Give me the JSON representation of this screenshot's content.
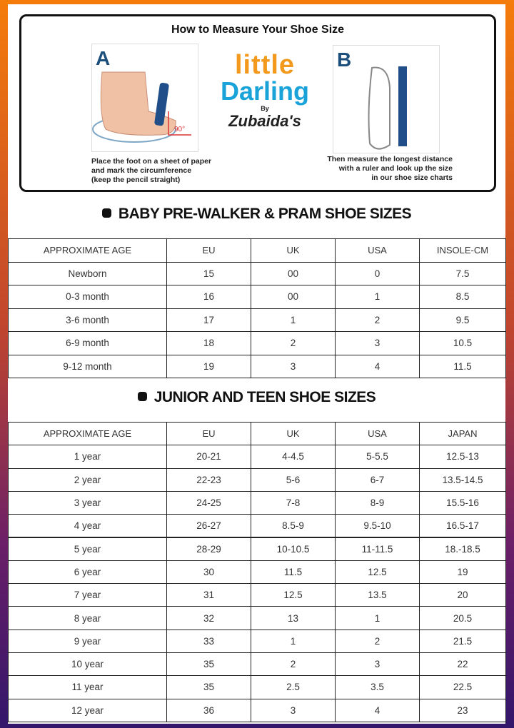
{
  "measure": {
    "title": "How to Measure Your Shoe Size",
    "step_a": {
      "letter": "A",
      "angle": "90°",
      "caption": [
        "Place the foot on a sheet of paper",
        "and mark the circumference",
        "(keep the pencil straight)"
      ]
    },
    "logo": {
      "line1": "little",
      "line2": "Darling",
      "by": "By",
      "brand": "Zubaida's"
    },
    "step_b": {
      "letter": "B",
      "caption": [
        "Then measure the longest distance",
        "with a ruler and look up the size",
        "in our shoe size charts"
      ]
    }
  },
  "table1": {
    "title": "BABY PRE-WALKER & PRAM SHOE SIZES",
    "header": [
      "APPROXIMATE AGE",
      "EU",
      "UK",
      "USA",
      "INSOLE-CM"
    ],
    "rows": [
      [
        "Newborn",
        "15",
        "00",
        "0",
        "7.5"
      ],
      [
        "0-3 month",
        "16",
        "00",
        "1",
        "8.5"
      ],
      [
        "3-6 month",
        "17",
        "1",
        "2",
        "9.5"
      ],
      [
        "6-9 month",
        "18",
        "2",
        "3",
        "10.5"
      ],
      [
        "9-12 month",
        "19",
        "3",
        "4",
        "11.5"
      ]
    ]
  },
  "table2": {
    "title": "JUNIOR AND TEEN SHOE SIZES",
    "header": [
      "APPROXIMATE AGE",
      "EU",
      "UK",
      "USA",
      "JAPAN"
    ],
    "rows": [
      [
        "1 year",
        "20-21",
        "4-4.5",
        "5-5.5",
        "12.5-13"
      ],
      [
        "2 year",
        "22-23",
        "5-6",
        "6-7",
        "13.5-14.5"
      ],
      [
        "3 year",
        "24-25",
        "7-8",
        "8-9",
        "15.5-16"
      ],
      [
        "4 year",
        "26-27",
        "8.5-9",
        "9.5-10",
        "16.5-17"
      ],
      [
        "5 year",
        "28-29",
        "10-10.5",
        "11-11.5",
        "18.-18.5"
      ],
      [
        "6 year",
        "30",
        "11.5",
        "12.5",
        "19"
      ],
      [
        "7 year",
        "31",
        "12.5",
        "13.5",
        "20"
      ],
      [
        "8 year",
        "32",
        "13",
        "1",
        "20.5"
      ],
      [
        "9 year",
        "33",
        "1",
        "2",
        "21.5"
      ],
      [
        "10 year",
        "35",
        "2",
        "3",
        "22"
      ],
      [
        "11 year",
        "35",
        "2.5",
        "3.5",
        "22.5"
      ],
      [
        "12 year",
        "36",
        "3",
        "4",
        "23"
      ]
    ]
  }
}
